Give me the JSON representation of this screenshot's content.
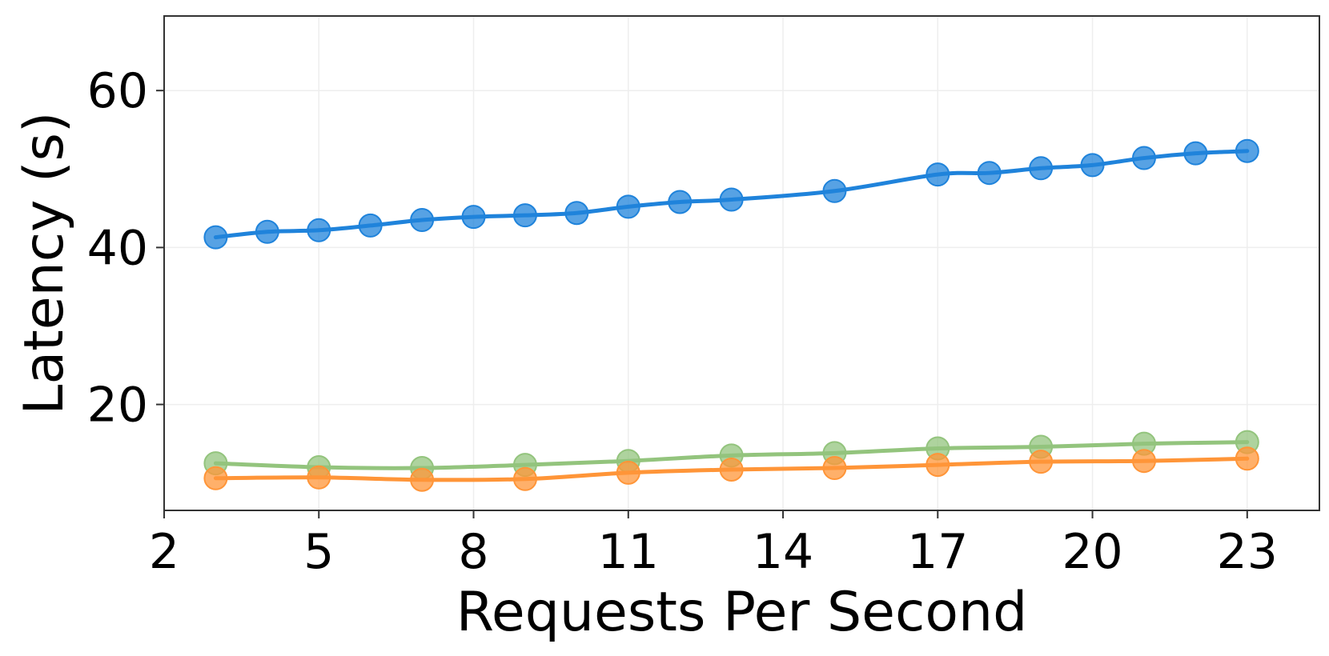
{
  "chart_data": {
    "type": "line",
    "title": "",
    "xlabel": "Requests Per Second",
    "ylabel": "Latency (s)",
    "xlim": [
      2,
      24.4
    ],
    "ylim": [
      6.5,
      69.5
    ],
    "xticks": [
      2,
      5,
      8,
      11,
      14,
      17,
      20,
      23
    ],
    "yticks": [
      20,
      40,
      60
    ],
    "grid": true,
    "series": [
      {
        "color": "#1f83db",
        "x": [
          3,
          4,
          5,
          6,
          7,
          8,
          9,
          10,
          11,
          12,
          13,
          15,
          17,
          18,
          19,
          20,
          21,
          22,
          23
        ],
        "y": [
          41.3,
          42.0,
          42.2,
          42.8,
          43.5,
          43.9,
          44.1,
          44.4,
          45.2,
          45.8,
          46.1,
          47.2,
          49.3,
          49.5,
          50.1,
          50.5,
          51.4,
          52.0,
          52.3
        ]
      },
      {
        "color": "#93c47d",
        "x": [
          3,
          5,
          7,
          9,
          11,
          13,
          15,
          17,
          19,
          21,
          23
        ],
        "y": [
          12.5,
          12.0,
          11.9,
          12.3,
          12.8,
          13.5,
          13.8,
          14.4,
          14.6,
          15.0,
          15.2
        ]
      },
      {
        "color": "#ff9538",
        "x": [
          3,
          5,
          7,
          9,
          11,
          13,
          15,
          17,
          19,
          21,
          23
        ],
        "y": [
          10.6,
          10.7,
          10.4,
          10.5,
          11.3,
          11.7,
          11.9,
          12.3,
          12.7,
          12.8,
          13.1
        ]
      }
    ]
  }
}
